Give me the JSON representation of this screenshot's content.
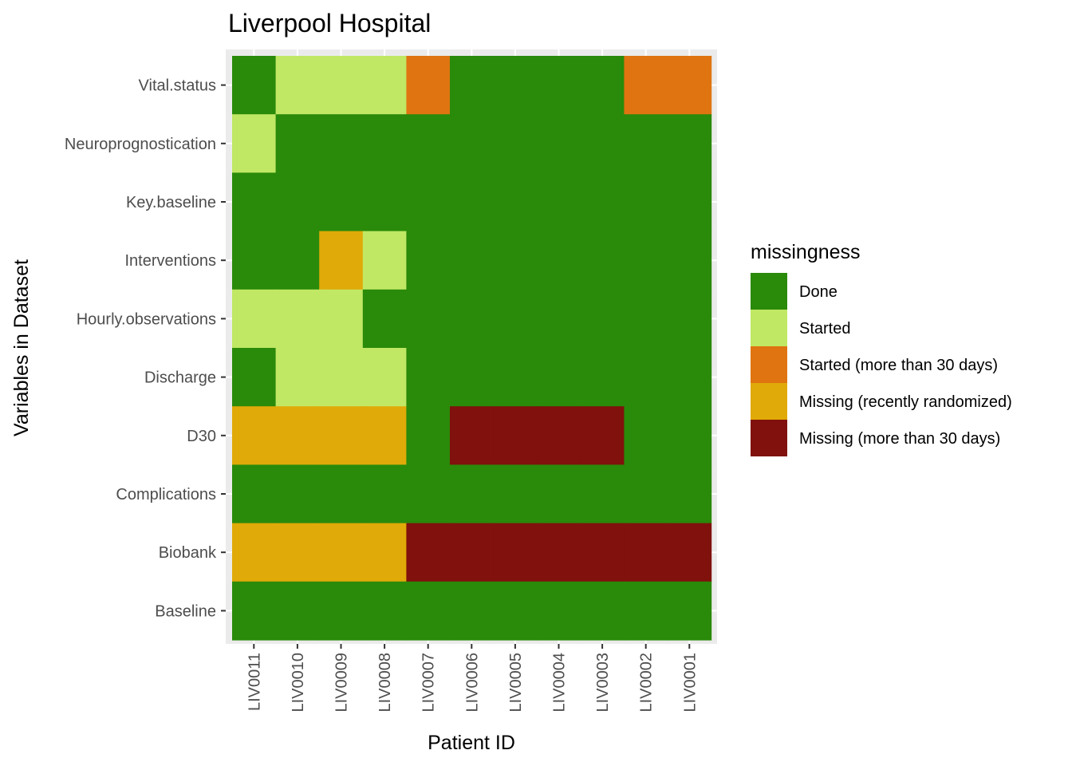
{
  "chart_data": {
    "type": "heatmap",
    "title": "Liverpool Hospital",
    "xlabel": "Patient ID",
    "ylabel": "Variables in Dataset",
    "x": [
      "LIV0011",
      "LIV0010",
      "LIV0009",
      "LIV0008",
      "LIV0007",
      "LIV0006",
      "LIV0005",
      "LIV0004",
      "LIV0003",
      "LIV0002",
      "LIV0001"
    ],
    "y": [
      "Vital.status",
      "Neuroprognostication",
      "Key.baseline",
      "Interventions",
      "Hourly.observations",
      "Discharge",
      "D30",
      "Complications",
      "Biobank",
      "Baseline"
    ],
    "legend": {
      "title": "missingness",
      "position": "right",
      "entries": [
        {
          "label": "Done",
          "color": "#2a8a0a"
        },
        {
          "label": "Started",
          "color": "#c0e864"
        },
        {
          "label": "Started (more than 30 days)",
          "color": "#df7410"
        },
        {
          "label": "Missing (recently randomized)",
          "color": "#e0aa08"
        },
        {
          "label": "Missing (more than 30 days)",
          "color": "#80110c"
        }
      ]
    },
    "values": [
      [
        "Done",
        "Started",
        "Started",
        "Started",
        "Started (more than 30 days)",
        "Done",
        "Done",
        "Done",
        "Done",
        "Started (more than 30 days)",
        "Started (more than 30 days)"
      ],
      [
        "Started",
        "Done",
        "Done",
        "Done",
        "Done",
        "Done",
        "Done",
        "Done",
        "Done",
        "Done",
        "Done"
      ],
      [
        "Done",
        "Done",
        "Done",
        "Done",
        "Done",
        "Done",
        "Done",
        "Done",
        "Done",
        "Done",
        "Done"
      ],
      [
        "Done",
        "Done",
        "Missing (recently randomized)",
        "Started",
        "Done",
        "Done",
        "Done",
        "Done",
        "Done",
        "Done",
        "Done"
      ],
      [
        "Started",
        "Started",
        "Started",
        "Done",
        "Done",
        "Done",
        "Done",
        "Done",
        "Done",
        "Done",
        "Done"
      ],
      [
        "Done",
        "Started",
        "Started",
        "Started",
        "Done",
        "Done",
        "Done",
        "Done",
        "Done",
        "Done",
        "Done"
      ],
      [
        "Missing (recently randomized)",
        "Missing (recently randomized)",
        "Missing (recently randomized)",
        "Missing (recently randomized)",
        "Done",
        "Missing (more than 30 days)",
        "Missing (more than 30 days)",
        "Missing (more than 30 days)",
        "Missing (more than 30 days)",
        "Done",
        "Done"
      ],
      [
        "Done",
        "Done",
        "Done",
        "Done",
        "Done",
        "Done",
        "Done",
        "Done",
        "Done",
        "Done",
        "Done"
      ],
      [
        "Missing (recently randomized)",
        "Missing (recently randomized)",
        "Missing (recently randomized)",
        "Missing (recently randomized)",
        "Missing (more than 30 days)",
        "Missing (more than 30 days)",
        "Missing (more than 30 days)",
        "Missing (more than 30 days)",
        "Missing (more than 30 days)",
        "Missing (more than 30 days)",
        "Missing (more than 30 days)"
      ],
      [
        "Done",
        "Done",
        "Done",
        "Done",
        "Done",
        "Done",
        "Done",
        "Done",
        "Done",
        "Done",
        "Done"
      ]
    ],
    "panel_background": "#ebebeb",
    "grid": true
  }
}
